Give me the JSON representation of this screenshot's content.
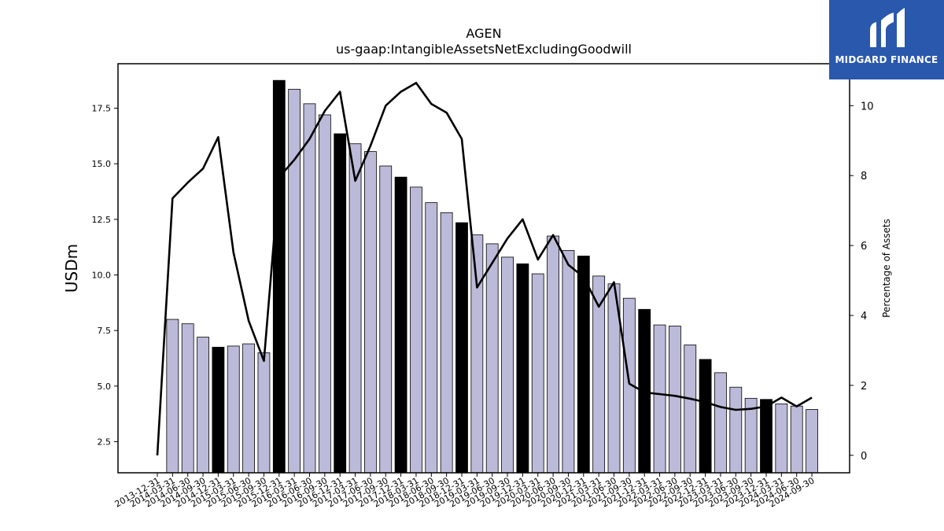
{
  "brand": {
    "name": "MIDGARD FINANCE",
    "logo_icon": "midgard-logo-icon",
    "color": "#2a58ad"
  },
  "chart_data": {
    "type": "bar+line",
    "title": "AGEN",
    "subtitle": "us-gaap:IntangibleAssetsNetExcludingGoodwill",
    "ylabel": "USDm",
    "y2label": "Percentage of Assets",
    "ylim": [
      1.1,
      19.5
    ],
    "y2lim": [
      -0.5,
      11.2
    ],
    "yticks": [
      "2.5",
      "5.0",
      "7.5",
      "10.0",
      "12.5",
      "15.0",
      "17.5"
    ],
    "y2ticks": [
      "0",
      "2",
      "4",
      "6",
      "8",
      "10"
    ],
    "bar_color": "#bcbad9",
    "highlight_color": "#000000",
    "categories": [
      "2013-12-31",
      "2014-03-31",
      "2014-06-30",
      "2014-09-30",
      "2014-12-31",
      "2015-03-31",
      "2015-06-30",
      "2015-09-30",
      "2015-12-31",
      "2016-03-31",
      "2016-06-30",
      "2016-09-30",
      "2016-12-31",
      "2017-03-31",
      "2017-06-30",
      "2017-09-30",
      "2017-12-31",
      "2018-03-31",
      "2018-06-30",
      "2018-09-30",
      "2018-12-31",
      "2019-03-31",
      "2019-06-30",
      "2019-09-30",
      "2019-12-31",
      "2020-03-31",
      "2020-06-30",
      "2020-09-30",
      "2020-12-31",
      "2021-03-31",
      "2021-06-30",
      "2021-09-30",
      "2021-12-31",
      "2022-03-31",
      "2022-06-30",
      "2022-09-30",
      "2022-12-31",
      "2023-03-31",
      "2023-06-30",
      "2023-09-30",
      "2023-12-31",
      "2024-03-31",
      "2024-06-30",
      "2024-09-30"
    ],
    "series": [
      {
        "kind": "bar",
        "values": [
          null,
          8.0,
          7.8,
          7.2,
          6.75,
          6.8,
          6.9,
          6.5,
          18.75,
          18.35,
          17.7,
          17.2,
          16.35,
          15.9,
          15.55,
          14.9,
          14.4,
          13.95,
          13.25,
          12.8,
          12.35,
          11.8,
          11.4,
          10.8,
          10.5,
          10.05,
          11.75,
          11.1,
          10.85,
          9.95,
          9.6,
          8.95,
          8.45,
          7.75,
          7.7,
          6.85,
          6.2,
          5.6,
          4.95,
          4.45,
          4.4,
          4.2,
          4.1,
          3.95
        ],
        "highlight": [
          false,
          false,
          false,
          false,
          true,
          false,
          false,
          false,
          true,
          false,
          false,
          false,
          true,
          false,
          false,
          false,
          true,
          false,
          false,
          false,
          true,
          false,
          false,
          false,
          true,
          false,
          false,
          false,
          true,
          false,
          false,
          false,
          true,
          false,
          false,
          false,
          true,
          false,
          false,
          false,
          true,
          false,
          false,
          false
        ]
      },
      {
        "kind": "line",
        "axis": "y2",
        "values": [
          0.0,
          7.35,
          7.8,
          8.2,
          9.1,
          5.8,
          3.85,
          2.7,
          7.95,
          8.45,
          9.05,
          9.85,
          10.4,
          7.85,
          8.85,
          10.0,
          10.4,
          10.65,
          10.05,
          9.8,
          9.05,
          4.8,
          5.5,
          6.2,
          6.75,
          5.6,
          6.3,
          5.45,
          5.1,
          4.25,
          4.95,
          2.05,
          1.8,
          1.75,
          1.7,
          1.62,
          1.52,
          1.38,
          1.3,
          1.33,
          1.4,
          1.65,
          1.4,
          1.65
        ]
      }
    ]
  }
}
